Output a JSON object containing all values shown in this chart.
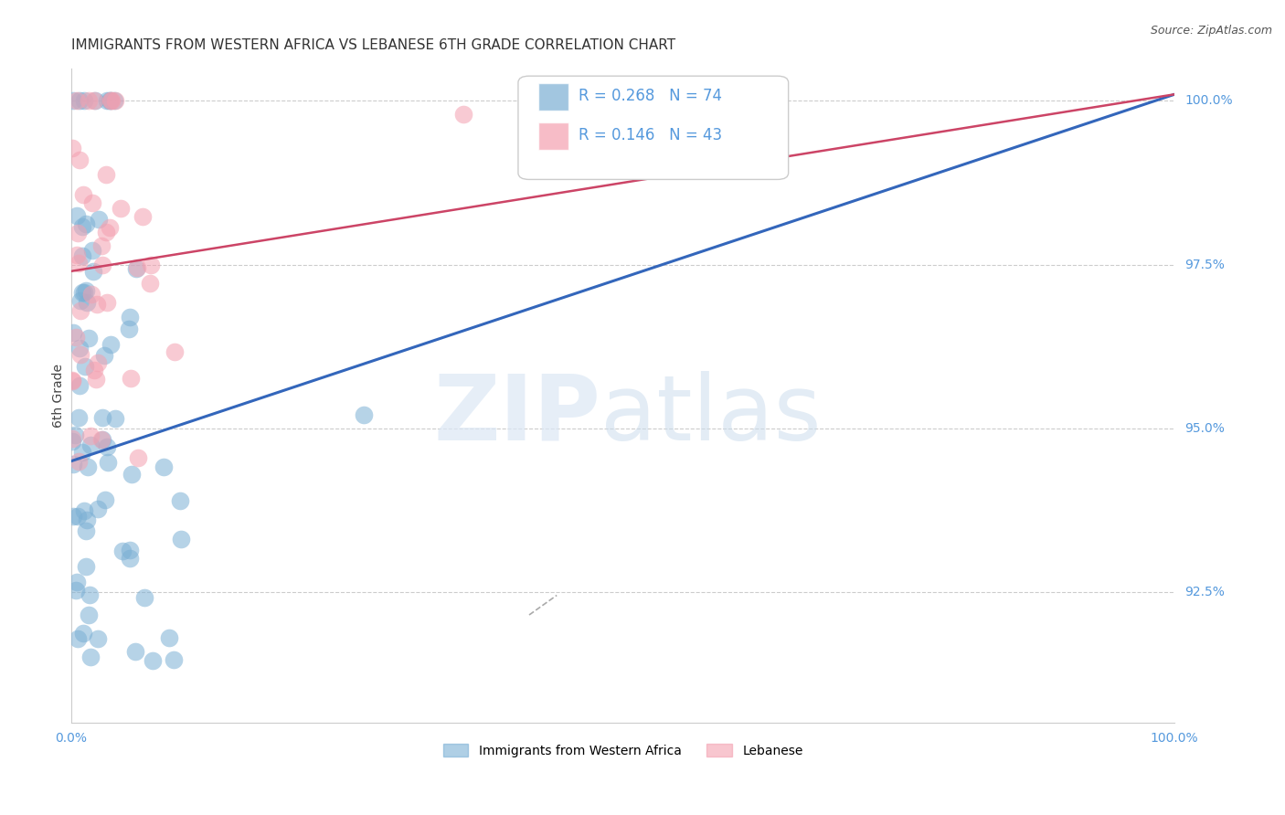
{
  "title": "IMMIGRANTS FROM WESTERN AFRICA VS LEBANESE 6TH GRADE CORRELATION CHART",
  "source": "Source: ZipAtlas.com",
  "ylabel": "6th Grade",
  "xlim": [
    0.0,
    1.0
  ],
  "ylim": [
    0.905,
    1.005
  ],
  "blue_R": 0.268,
  "blue_N": 74,
  "pink_R": 0.146,
  "pink_N": 43,
  "blue_color": "#7bafd4",
  "pink_color": "#f4a0b0",
  "blue_line_color": "#3366bb",
  "pink_line_color": "#cc4466",
  "legend_label_blue": "Immigrants from Western Africa",
  "legend_label_pink": "Lebanese",
  "blue_trend_y_start": 0.945,
  "blue_trend_y_end": 1.001,
  "pink_trend_y_start": 0.974,
  "pink_trend_y_end": 1.001,
  "ytick_positions": [
    0.925,
    0.95,
    0.975,
    1.0
  ],
  "ytick_labels": [
    "92.5%",
    "95.0%",
    "97.5%",
    "100.0%"
  ],
  "background_color": "#ffffff",
  "grid_color": "#cccccc",
  "title_fontsize": 11,
  "tick_label_color": "#5599dd"
}
